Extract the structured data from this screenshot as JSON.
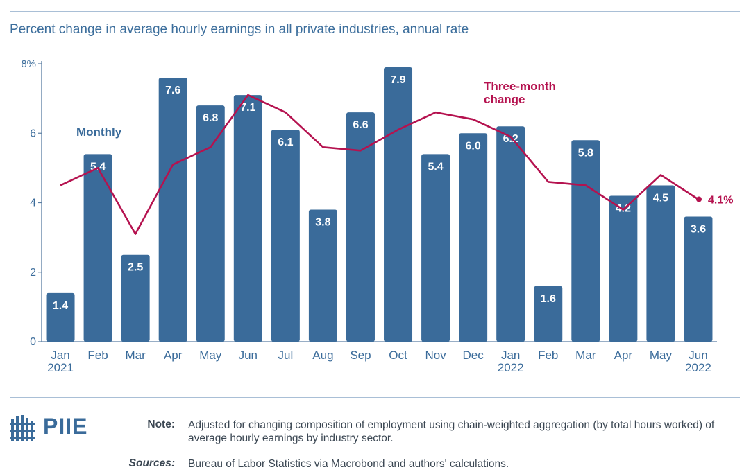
{
  "title": "Percent change in average hourly earnings in all private industries, annual rate",
  "colors": {
    "bar": "#3a6b9a",
    "line": "#b5124f",
    "axis_text": "#3a6b9a"
  },
  "chart_data": {
    "type": "bar",
    "categories": [
      {
        "top": "Jan",
        "bottom": "2021"
      },
      {
        "top": "Feb",
        "bottom": ""
      },
      {
        "top": "Mar",
        "bottom": ""
      },
      {
        "top": "Apr",
        "bottom": ""
      },
      {
        "top": "May",
        "bottom": ""
      },
      {
        "top": "Jun",
        "bottom": ""
      },
      {
        "top": "Jul",
        "bottom": ""
      },
      {
        "top": "Aug",
        "bottom": ""
      },
      {
        "top": "Sep",
        "bottom": ""
      },
      {
        "top": "Oct",
        "bottom": ""
      },
      {
        "top": "Nov",
        "bottom": ""
      },
      {
        "top": "Dec",
        "bottom": ""
      },
      {
        "top": "Jan",
        "bottom": "2022"
      },
      {
        "top": "Feb",
        "bottom": ""
      },
      {
        "top": "Mar",
        "bottom": ""
      },
      {
        "top": "Apr",
        "bottom": ""
      },
      {
        "top": "May",
        "bottom": ""
      },
      {
        "top": "Jun",
        "bottom": "2022"
      }
    ],
    "series": [
      {
        "name": "Monthly",
        "kind": "bar",
        "values": [
          1.4,
          5.4,
          2.5,
          7.6,
          6.8,
          7.1,
          6.1,
          3.8,
          6.6,
          7.9,
          5.4,
          6.0,
          6.2,
          1.6,
          5.8,
          4.2,
          4.5,
          3.6
        ],
        "labels": [
          "1.4",
          "5.4",
          "2.5",
          "7.6",
          "6.8",
          "7.1",
          "6.1",
          "3.8",
          "6.6",
          "7.9",
          "5.4",
          "6.0",
          "6.2",
          "1.6",
          "5.8",
          "4.2",
          "4.5",
          "3.6"
        ]
      },
      {
        "name_lines": [
          "Three-month",
          "change"
        ],
        "kind": "line",
        "values": [
          4.5,
          5.0,
          3.1,
          5.1,
          5.6,
          7.1,
          6.6,
          5.6,
          5.5,
          6.1,
          6.6,
          6.4,
          5.9,
          4.6,
          4.5,
          3.8,
          4.8,
          4.1
        ],
        "end_label": "4.1%"
      }
    ],
    "ylim": [
      0,
      8
    ],
    "yticks": [
      {
        "value": 0,
        "label": "0"
      },
      {
        "value": 2,
        "label": "2"
      },
      {
        "value": 4,
        "label": "4"
      },
      {
        "value": 6,
        "label": "6"
      },
      {
        "value": 8,
        "label": "8%"
      }
    ],
    "grid": false
  },
  "footer": {
    "logo_text": "PIIE",
    "note_label": "Note:",
    "note_text": "Adjusted for changing composition of employment using chain-weighted aggregation (by total hours worked) of average hourly earnings by industry sector.",
    "sources_label": "Sources:",
    "sources_text": "Bureau of Labor Statistics via Macrobond and authors' calculations."
  }
}
